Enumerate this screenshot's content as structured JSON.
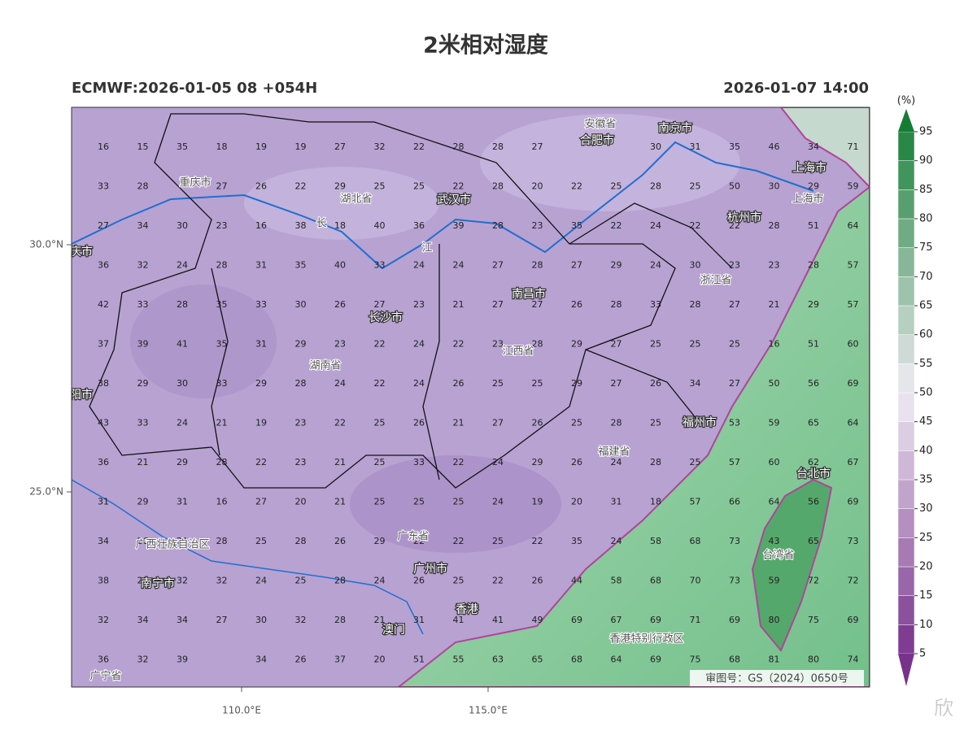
{
  "title": "2米相对湿度",
  "model_run": "ECMWF:2026-01-05 08 +054H",
  "valid_time": "2026-01-07 14:00",
  "colorbar": {
    "unit": "(%)",
    "levels": [
      5,
      10,
      15,
      20,
      25,
      30,
      35,
      40,
      45,
      50,
      55,
      60,
      65,
      70,
      75,
      80,
      85,
      90,
      95
    ]
  },
  "axes": {
    "lat_labels": [
      "30.0°N",
      "25.0°N"
    ],
    "lon_labels": [
      "110.0°E",
      "115.0°E"
    ]
  },
  "grid": {
    "rows": [
      [
        16,
        15,
        35,
        18,
        19,
        19,
        27,
        32,
        22,
        28,
        28,
        27,
        null,
        null,
        30,
        31,
        35,
        46,
        34,
        71
      ],
      [
        33,
        28,
        null,
        27,
        26,
        22,
        29,
        25,
        25,
        22,
        28,
        20,
        22,
        25,
        28,
        25,
        50,
        30,
        29,
        59
      ],
      [
        27,
        34,
        30,
        23,
        16,
        38,
        18,
        40,
        36,
        39,
        28,
        23,
        35,
        22,
        24,
        22,
        22,
        28,
        51,
        64
      ],
      [
        36,
        32,
        24,
        28,
        31,
        35,
        40,
        33,
        24,
        24,
        27,
        28,
        27,
        29,
        24,
        30,
        23,
        23,
        28,
        57
      ],
      [
        42,
        33,
        28,
        35,
        33,
        30,
        26,
        27,
        23,
        21,
        27,
        27,
        26,
        28,
        33,
        28,
        27,
        21,
        29,
        57
      ],
      [
        37,
        39,
        41,
        35,
        31,
        29,
        23,
        22,
        24,
        22,
        23,
        28,
        29,
        27,
        25,
        25,
        25,
        16,
        51,
        60
      ],
      [
        38,
        29,
        30,
        33,
        29,
        28,
        24,
        22,
        24,
        26,
        25,
        25,
        29,
        27,
        26,
        34,
        27,
        50,
        56,
        69
      ],
      [
        43,
        33,
        24,
        21,
        19,
        23,
        22,
        25,
        26,
        21,
        27,
        26,
        25,
        28,
        25,
        null,
        53,
        59,
        65,
        64
      ],
      [
        36,
        21,
        29,
        28,
        22,
        23,
        21,
        25,
        33,
        22,
        24,
        29,
        26,
        24,
        28,
        25,
        57,
        60,
        62,
        67
      ],
      [
        31,
        29,
        31,
        16,
        27,
        20,
        21,
        25,
        25,
        25,
        24,
        19,
        20,
        31,
        18,
        57,
        66,
        64,
        56,
        69
      ],
      [
        34,
        26,
        21,
        28,
        25,
        28,
        26,
        29,
        22,
        22,
        25,
        22,
        35,
        24,
        58,
        68,
        73,
        43,
        65,
        73
      ],
      [
        38,
        29,
        32,
        32,
        24,
        25,
        28,
        24,
        26,
        25,
        22,
        26,
        44,
        58,
        68,
        70,
        73,
        59,
        72,
        72
      ],
      [
        32,
        34,
        34,
        27,
        30,
        32,
        28,
        21,
        31,
        41,
        41,
        49,
        69,
        67,
        69,
        71,
        69,
        80,
        75,
        69
      ],
      [
        36,
        32,
        39,
        null,
        34,
        26,
        37,
        20,
        51,
        55,
        63,
        65,
        68,
        64,
        69,
        75,
        68,
        81,
        80,
        74
      ]
    ]
  },
  "places": [
    "安徽省",
    "合肥市",
    "南京市",
    "上海市",
    "上海市",
    "重庆市",
    "湖北省",
    "武汉市",
    "杭州市",
    "长",
    "江",
    "长沙市",
    "南昌市",
    "浙江省",
    "湖南省",
    "江西省",
    "阳市",
    "福州市",
    "福建省",
    "台北市",
    "广西壮族自治区",
    "广东省",
    "广州市",
    "南宁市",
    "台湾省",
    "香港",
    "澳门",
    "香港特别行政区",
    "广宁省",
    "庆市"
  ],
  "approval": "审图号：GS（2024）0650号",
  "watermark": "欣"
}
